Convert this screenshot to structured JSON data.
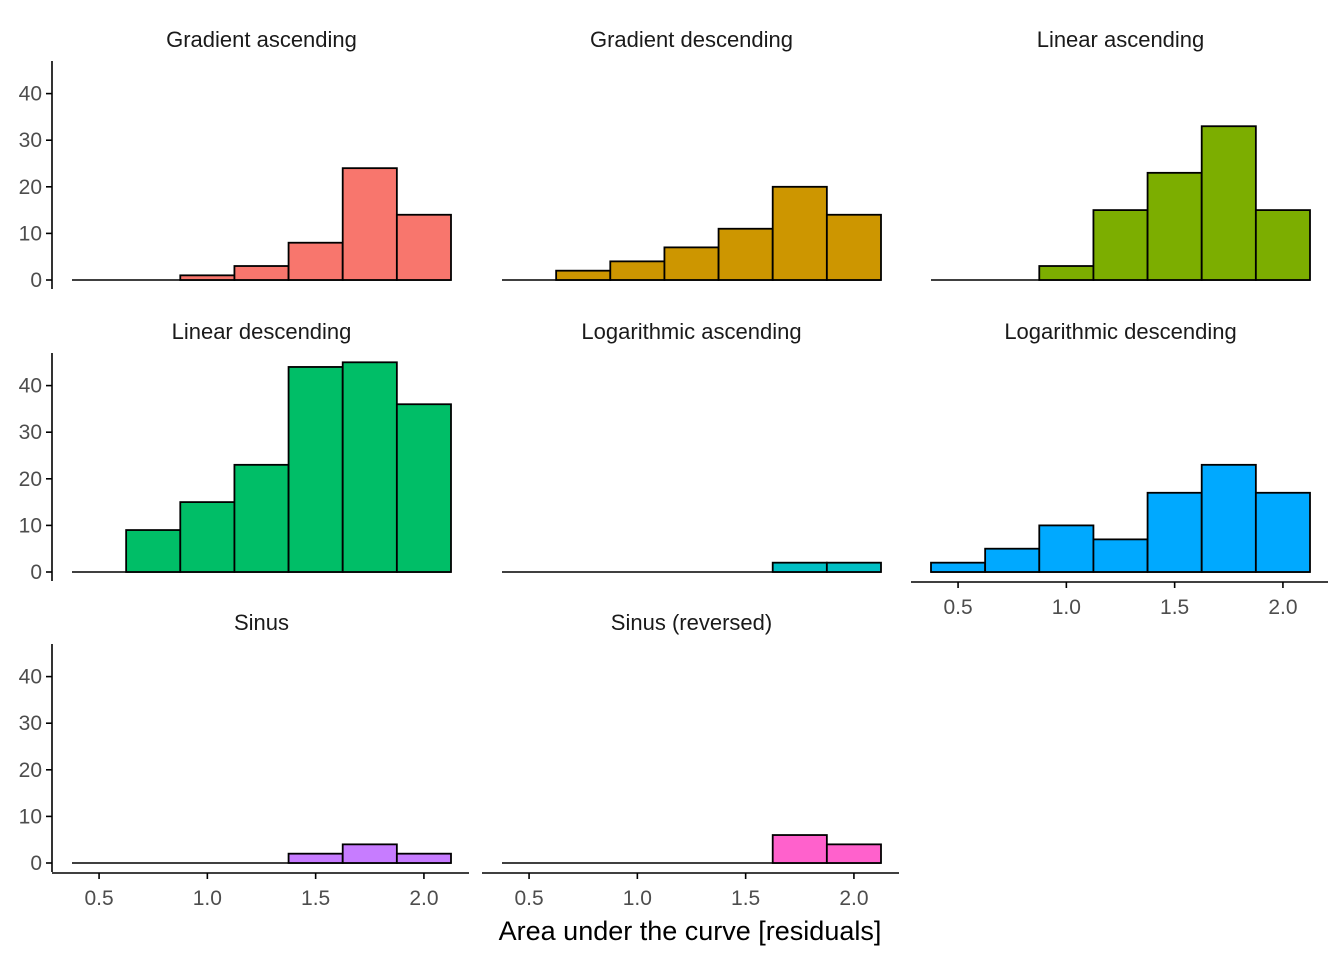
{
  "chart_data": {
    "type": "bar",
    "subtype": "histogram-facets",
    "xlabel": "Area under the curve [residuals]",
    "ylabel": "",
    "xlim": [
      0.375,
      2.125
    ],
    "ylim": [
      0,
      47
    ],
    "bin_width": 0.25,
    "bin_edges": [
      0.375,
      0.625,
      0.875,
      1.125,
      1.375,
      1.625,
      1.875,
      2.125
    ],
    "x_ticks": [
      "0.5",
      "1.0",
      "1.5",
      "2.0"
    ],
    "y_ticks": [
      "0",
      "10",
      "20",
      "30",
      "40"
    ],
    "grid": false,
    "legend": "none",
    "facets": [
      {
        "title": "Gradient ascending",
        "color": "#F8766D",
        "counts": [
          0,
          0,
          1,
          3,
          8,
          24,
          14
        ]
      },
      {
        "title": "Gradient descending",
        "color": "#CD9600",
        "counts": [
          0,
          2,
          4,
          7,
          11,
          20,
          14
        ]
      },
      {
        "title": "Linear ascending",
        "color": "#7CAE00",
        "counts": [
          0,
          0,
          3,
          15,
          23,
          33,
          15
        ]
      },
      {
        "title": "Linear descending",
        "color": "#00BE67",
        "counts": [
          0,
          9,
          15,
          23,
          44,
          45,
          36
        ]
      },
      {
        "title": "Logarithmic ascending",
        "color": "#00BFC4",
        "counts": [
          0,
          0,
          0,
          0,
          0,
          2,
          2
        ]
      },
      {
        "title": "Logarithmic descending",
        "color": "#00A9FF",
        "counts": [
          2,
          5,
          10,
          7,
          17,
          23,
          17
        ]
      },
      {
        "title": "Sinus",
        "color": "#C77CFF",
        "counts": [
          0,
          0,
          0,
          0,
          2,
          4,
          2
        ]
      },
      {
        "title": "Sinus (reversed)",
        "color": "#FF61CC",
        "counts": [
          0,
          0,
          0,
          0,
          0,
          6,
          4
        ]
      }
    ]
  }
}
